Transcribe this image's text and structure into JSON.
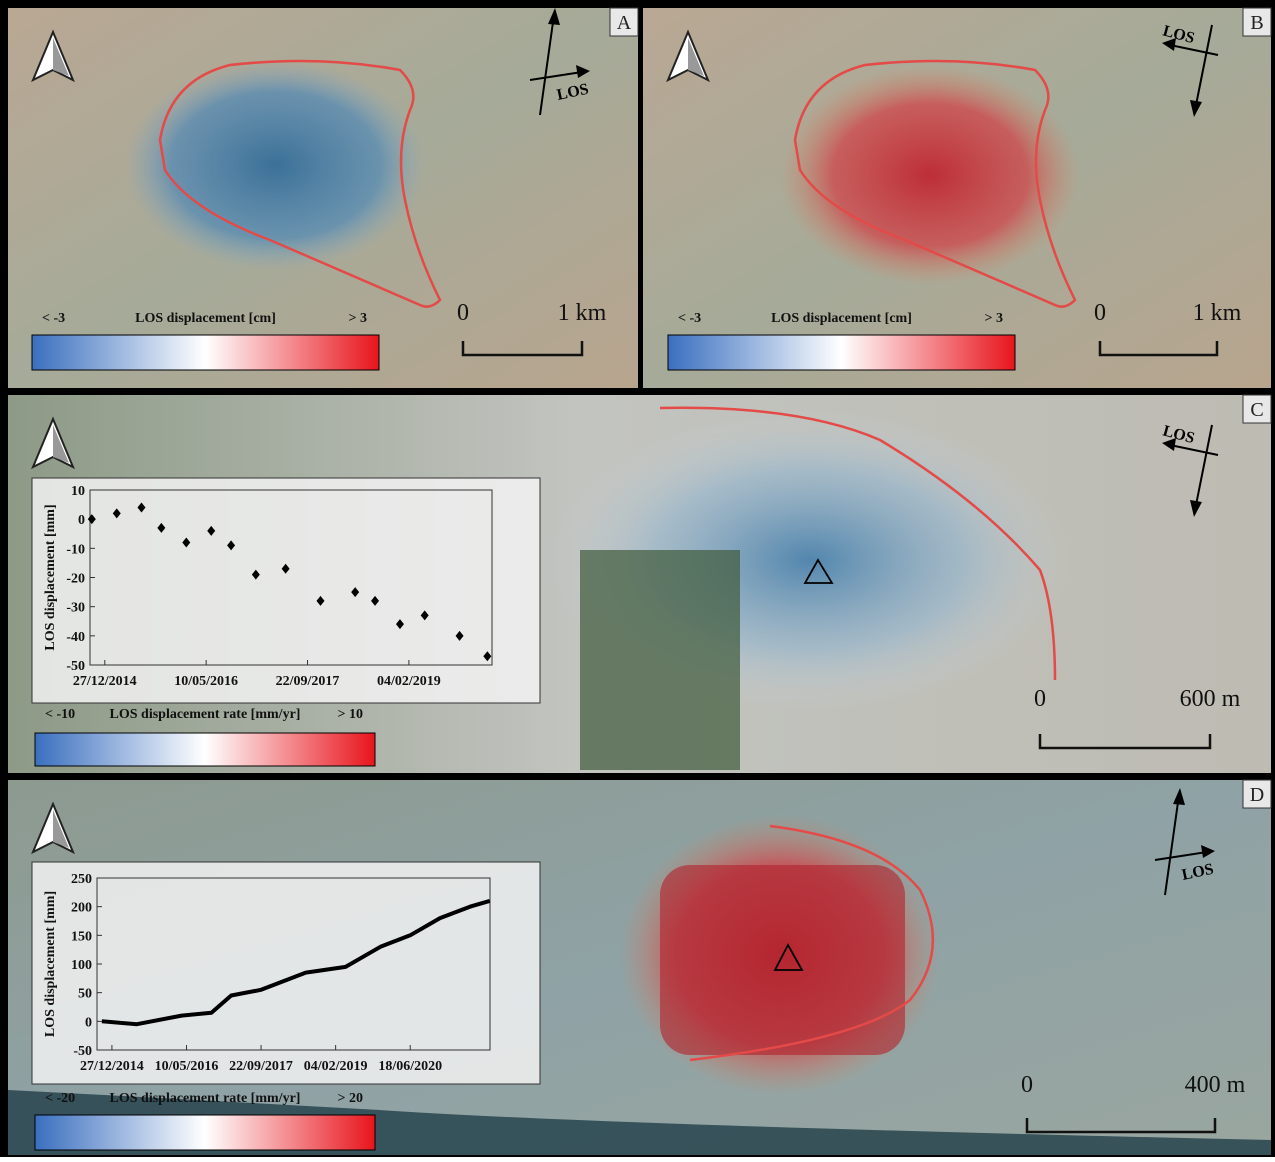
{
  "panels": [
    {
      "letter": "A",
      "los": "LOS",
      "colorbar": {
        "min": "< -3",
        "title": "LOS displacement [cm]",
        "max": "> 3"
      },
      "scale": {
        "start": "0",
        "end": "1 km"
      }
    },
    {
      "letter": "B",
      "los": "LOS",
      "colorbar": {
        "min": "< -3",
        "title": "LOS displacement [cm]",
        "max": "> 3"
      },
      "scale": {
        "start": "0",
        "end": "1 km"
      }
    },
    {
      "letter": "C",
      "los": "LOS",
      "colorbar": {
        "min": "< -10",
        "title": "LOS displacement rate [mm/yr]",
        "max": "> 10"
      },
      "scale": {
        "start": "0",
        "end": "600 m"
      }
    },
    {
      "letter": "D",
      "los": "LOS",
      "colorbar": {
        "min": "< -20",
        "title": "LOS displacement rate [mm/yr]",
        "max": "> 20"
      },
      "scale": {
        "start": "0",
        "end": "400 m"
      }
    }
  ],
  "chart_data": [
    {
      "type": "line",
      "y_label": "LOS displacement [mm]",
      "x": [
        "24/10/2014",
        "24/02/2015",
        "26/06/2015",
        "02/10/2015",
        "02/02/2016",
        "04/06/2016",
        "10/09/2016",
        "10/01/2017",
        "06/06/2017",
        "25/11/2017",
        "15/05/2018",
        "21/08/2018",
        "22/12/2018",
        "23/04/2019",
        "12/10/2019",
        "26/02/2020"
      ],
      "series": [
        {
          "color": "#000000",
          "marker": "diamond",
          "values": [
            0,
            2,
            4,
            -3,
            -8,
            -4,
            -9,
            -19,
            -17,
            -28,
            -25,
            -28,
            -36,
            -33,
            -40,
            -47
          ]
        }
      ],
      "xlim": [
        "15/10/2014",
        "20/03/2020"
      ],
      "xticks": [
        "27/12/2014",
        "10/05/2016",
        "22/09/2017",
        "04/02/2019"
      ],
      "ylim": [
        -50,
        10
      ],
      "yticks": [
        10,
        0,
        -10,
        -20,
        -30,
        -40,
        -50
      ]
    },
    {
      "type": "line",
      "y_label": "LOS displacement [mm]",
      "x": [
        "21/10/2014",
        "12/06/2015",
        "07/04/2016",
        "24/10/2016",
        "06/03/2017",
        "22/09/2017",
        "19/07/2018",
        "12/04/2019",
        "01/12/2019",
        "18/06/2020",
        "04/01/2021",
        "23/07/2021",
        "03/12/2021"
      ],
      "series": [
        {
          "color": "#000000",
          "marker": "none",
          "values": [
            0,
            -5,
            10,
            15,
            45,
            55,
            85,
            95,
            130,
            150,
            180,
            200,
            210
          ]
        }
      ],
      "xlim": [
        "18/09/2014",
        "05/12/2021"
      ],
      "xticks": [
        "27/12/2014",
        "10/05/2016",
        "22/09/2017",
        "04/02/2019",
        "18/06/2020"
      ],
      "ylim": [
        -50,
        250
      ],
      "yticks": [
        250,
        200,
        150,
        100,
        50,
        0,
        -50
      ]
    }
  ]
}
